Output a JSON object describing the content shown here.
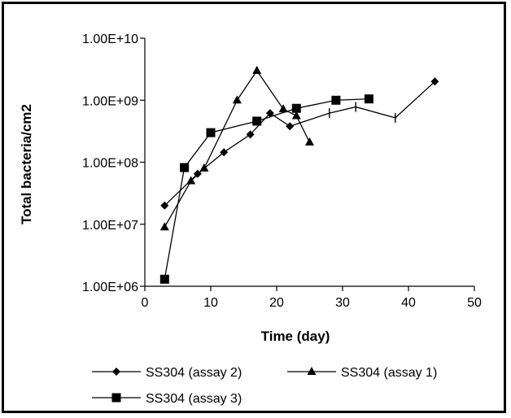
{
  "chart_data": {
    "type": "line",
    "title": "",
    "xlabel": "Time (day)",
    "ylabel": "Total bacteria/cm2",
    "xlim": [
      0,
      50
    ],
    "ylim": [
      1000000,
      10000000000
    ],
    "yscale": "log",
    "x_ticks": [
      "0",
      "10",
      "20",
      "30",
      "40",
      "50"
    ],
    "y_ticks": [
      "1.00E+06",
      "1.00E+07",
      "1.00E+08",
      "1.00E+09",
      "1.00E+10"
    ],
    "grid": false,
    "legend_position": "bottom",
    "series": [
      {
        "name": "SS304 (assay 2)",
        "marker": "diamond",
        "points": [
          [
            3,
            20000000
          ],
          [
            8,
            65000000
          ],
          [
            12,
            145000000
          ],
          [
            16,
            280000000
          ],
          [
            19,
            620000000
          ],
          [
            22,
            380000000
          ],
          [
            28,
            620000000
          ],
          [
            32,
            780000000
          ],
          [
            38,
            520000000
          ],
          [
            44,
            2000000000
          ]
        ],
        "point_markers": [
          "diamond",
          "diamond",
          "diamond",
          "diamond",
          "diamond",
          "diamond",
          "tick",
          "tick",
          "tick",
          "diamond"
        ]
      },
      {
        "name": "SS304 (assay 1)",
        "marker": "triangle",
        "points": [
          [
            3,
            9000000
          ],
          [
            7,
            50000000
          ],
          [
            9,
            80000000
          ],
          [
            14,
            1000000000
          ],
          [
            17,
            3000000000
          ],
          [
            21,
            720000000
          ],
          [
            23,
            560000000
          ],
          [
            25,
            210000000
          ]
        ]
      },
      {
        "name": "SS304 (assay 3)",
        "marker": "square",
        "points": [
          [
            3,
            1300000
          ],
          [
            6,
            82000000
          ],
          [
            10,
            300000000
          ],
          [
            17,
            460000000
          ],
          [
            23,
            740000000
          ],
          [
            29,
            1000000000
          ],
          [
            34,
            1050000000
          ]
        ]
      }
    ]
  }
}
